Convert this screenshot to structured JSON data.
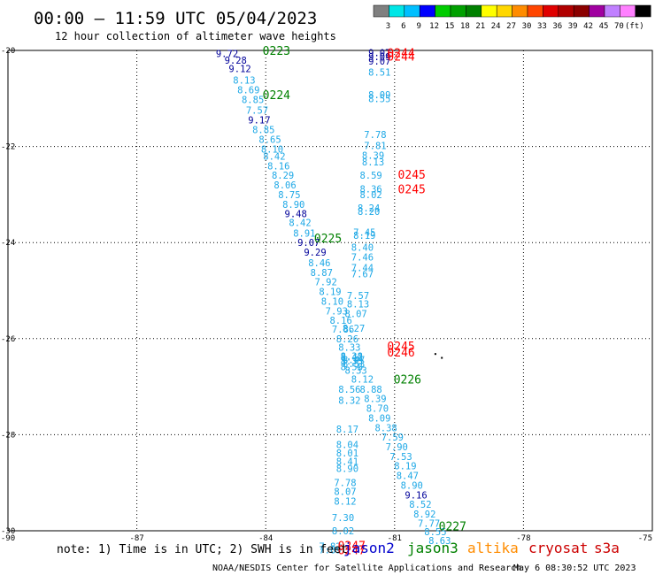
{
  "header": {
    "title": "00:00 — 11:59 UTC 05/04/2023",
    "subtitle": "12 hour collection of altimeter wave heights"
  },
  "colorbar": {
    "colors": [
      "#808080",
      "#00e6e6",
      "#00bfff",
      "#0000ff",
      "#00cc00",
      "#00a000",
      "#008000",
      "#ffff00",
      "#ffd700",
      "#ff8c00",
      "#ff4500",
      "#e00000",
      "#b00000",
      "#8b0000",
      "#a000a0",
      "#c080ff",
      "#ff80ff",
      "#000000"
    ],
    "labels": [
      "3",
      "6",
      "9",
      "12",
      "15",
      "18",
      "21",
      "24",
      "27",
      "30",
      "33",
      "36",
      "39",
      "42",
      "45",
      "70",
      "(ft)"
    ]
  },
  "footer": {
    "note": "note: 1) Time is in UTC; 2) SWH is in feet",
    "satellites": [
      {
        "name": "jason2",
        "color": "#0000cc"
      },
      {
        "name": "jason3",
        "color": "#008000"
      },
      {
        "name": "altika",
        "color": "#ff8c00"
      },
      {
        "name": "cryosat",
        "color": "#cc0000"
      },
      {
        "name": "s3a",
        "color": "#cc0000"
      }
    ],
    "credit": "NOAA/NESDIS Center for Satellite Applications and Research",
    "timestamp": "May  6 08:30:52 UTC 2023"
  },
  "chart_data": {
    "type": "scatter",
    "xlim": [
      -90,
      -75
    ],
    "ylim": [
      -30,
      -20
    ],
    "xticks": [
      -90,
      -87,
      -84,
      -81,
      -78,
      -75
    ],
    "xtick_labels": [
      "-90",
      "-87",
      "-84",
      "-81",
      "-78",
      "-75"
    ],
    "yticks": [
      -20,
      -22,
      -24,
      -26,
      -28,
      -30
    ],
    "ytick_labels": [
      "-20",
      "-22",
      "-24",
      "-26",
      "-28",
      "-30"
    ],
    "grid": true,
    "colors": {
      "light": "#1ea8e6",
      "dark": "#000099",
      "green": "#008000",
      "red": "#ff0000"
    },
    "points": [
      {
        "x": -84.9,
        "y": -20.06,
        "v": "9.72",
        "c": "dark"
      },
      {
        "x": -84.7,
        "y": -20.2,
        "v": "9.28",
        "c": "dark"
      },
      {
        "x": -84.6,
        "y": -20.38,
        "v": "9.12",
        "c": "dark"
      },
      {
        "x": -84.5,
        "y": -20.62,
        "v": "8.13",
        "c": "light"
      },
      {
        "x": -84.4,
        "y": -20.82,
        "v": "8.69",
        "c": "light"
      },
      {
        "x": -84.3,
        "y": -21.02,
        "v": "8.85",
        "c": "light"
      },
      {
        "x": -84.2,
        "y": -21.24,
        "v": "7.57",
        "c": "light"
      },
      {
        "x": -84.15,
        "y": -21.45,
        "v": "9.17",
        "c": "dark"
      },
      {
        "x": -84.05,
        "y": -21.65,
        "v": "8.85",
        "c": "light"
      },
      {
        "x": -83.9,
        "y": -21.85,
        "v": "8.65",
        "c": "light"
      },
      {
        "x": -83.85,
        "y": -22.05,
        "v": "8.10",
        "c": "light"
      },
      {
        "x": -83.8,
        "y": -22.2,
        "v": "8.42",
        "c": "light"
      },
      {
        "x": -83.7,
        "y": -22.4,
        "v": "8.16",
        "c": "light"
      },
      {
        "x": -83.6,
        "y": -22.6,
        "v": "8.29",
        "c": "light"
      },
      {
        "x": -83.55,
        "y": -22.8,
        "v": "8.06",
        "c": "light"
      },
      {
        "x": -83.45,
        "y": -23.0,
        "v": "8.75",
        "c": "light"
      },
      {
        "x": -83.35,
        "y": -23.2,
        "v": "8.90",
        "c": "light"
      },
      {
        "x": -83.3,
        "y": -23.4,
        "v": "9.48",
        "c": "dark"
      },
      {
        "x": -83.2,
        "y": -23.58,
        "v": "8.42",
        "c": "light"
      },
      {
        "x": -83.1,
        "y": -23.8,
        "v": "8.91",
        "c": "light"
      },
      {
        "x": -83.0,
        "y": -24.0,
        "v": "9.07",
        "c": "dark"
      },
      {
        "x": -82.85,
        "y": -24.2,
        "v": "9.29",
        "c": "dark"
      },
      {
        "x": -82.75,
        "y": -24.42,
        "v": "8.46",
        "c": "light"
      },
      {
        "x": -82.7,
        "y": -24.62,
        "v": "8.87",
        "c": "light"
      },
      {
        "x": -82.6,
        "y": -24.82,
        "v": "7.92",
        "c": "light"
      },
      {
        "x": -82.5,
        "y": -25.02,
        "v": "8.19",
        "c": "light"
      },
      {
        "x": -82.45,
        "y": -25.22,
        "v": "8.10",
        "c": "light"
      },
      {
        "x": -82.35,
        "y": -25.42,
        "v": "7.93",
        "c": "light"
      },
      {
        "x": -82.25,
        "y": -25.62,
        "v": "8.16",
        "c": "light"
      },
      {
        "x": -82.2,
        "y": -25.8,
        "v": "7.86",
        "c": "light"
      },
      {
        "x": -82.1,
        "y": -26.0,
        "v": "8.26",
        "c": "light"
      },
      {
        "x": -82.05,
        "y": -26.18,
        "v": "8.33",
        "c": "light"
      },
      {
        "x": -82.0,
        "y": -26.36,
        "v": "8.38",
        "c": "light"
      },
      {
        "x": -81.95,
        "y": -26.44,
        "v": "8.47",
        "c": "light"
      },
      {
        "x": -81.95,
        "y": -26.52,
        "v": "8.53",
        "c": "light"
      },
      {
        "x": -81.9,
        "y": -26.66,
        "v": "8.33",
        "c": "light"
      },
      {
        "x": -81.75,
        "y": -26.84,
        "v": "8.12",
        "c": "light"
      },
      {
        "x": -81.55,
        "y": -27.05,
        "v": "8.88",
        "c": "light"
      },
      {
        "x": -81.45,
        "y": -27.25,
        "v": "8.39",
        "c": "light"
      },
      {
        "x": -81.4,
        "y": -27.45,
        "v": "8.70",
        "c": "light"
      },
      {
        "x": -81.35,
        "y": -27.65,
        "v": "8.09",
        "c": "light"
      },
      {
        "x": -81.2,
        "y": -27.85,
        "v": "8.38",
        "c": "light"
      },
      {
        "x": -81.05,
        "y": -28.05,
        "v": "7.59",
        "c": "light"
      },
      {
        "x": -80.95,
        "y": -28.25,
        "v": "7.90",
        "c": "light"
      },
      {
        "x": -80.85,
        "y": -28.45,
        "v": "7.53",
        "c": "light"
      },
      {
        "x": -80.75,
        "y": -28.65,
        "v": "8.19",
        "c": "light"
      },
      {
        "x": -80.7,
        "y": -28.85,
        "v": "8.47",
        "c": "light"
      },
      {
        "x": -80.6,
        "y": -29.05,
        "v": "8.90",
        "c": "light"
      },
      {
        "x": -80.5,
        "y": -29.25,
        "v": "9.16",
        "c": "dark"
      },
      {
        "x": -80.4,
        "y": -29.45,
        "v": "8.52",
        "c": "light"
      },
      {
        "x": -80.3,
        "y": -29.65,
        "v": "8.92",
        "c": "light"
      },
      {
        "x": -80.2,
        "y": -29.84,
        "v": "7.77",
        "c": "light"
      },
      {
        "x": -80.05,
        "y": -30.02,
        "v": "8.55",
        "c": "light"
      },
      {
        "x": -79.95,
        "y": -30.2,
        "v": "8.63",
        "c": "light"
      },
      {
        "x": -81.35,
        "y": -20.05,
        "v": "9.07",
        "c": "dark"
      },
      {
        "x": -81.35,
        "y": -20.13,
        "v": "9.09",
        "c": "dark"
      },
      {
        "x": -81.35,
        "y": -20.22,
        "v": "9.07",
        "c": "dark"
      },
      {
        "x": -81.35,
        "y": -20.45,
        "v": "8.51",
        "c": "light"
      },
      {
        "x": -81.35,
        "y": -20.92,
        "v": "8.09",
        "c": "light"
      },
      {
        "x": -81.35,
        "y": -21.0,
        "v": "8.55",
        "c": "light"
      },
      {
        "x": -81.45,
        "y": -21.75,
        "v": "7.78",
        "c": "light"
      },
      {
        "x": -81.45,
        "y": -21.98,
        "v": "7.81",
        "c": "light"
      },
      {
        "x": -81.5,
        "y": -22.18,
        "v": "8.39",
        "c": "light"
      },
      {
        "x": -81.5,
        "y": -22.32,
        "v": "8.13",
        "c": "light"
      },
      {
        "x": -81.55,
        "y": -22.6,
        "v": "8.59",
        "c": "light"
      },
      {
        "x": -81.55,
        "y": -22.88,
        "v": "8.36",
        "c": "light"
      },
      {
        "x": -81.55,
        "y": -23.0,
        "v": "8.02",
        "c": "light"
      },
      {
        "x": -81.6,
        "y": -23.28,
        "v": "8.24",
        "c": "light"
      },
      {
        "x": -81.6,
        "y": -23.35,
        "v": "8.20",
        "c": "light"
      },
      {
        "x": -81.7,
        "y": -23.78,
        "v": "7.45",
        "c": "light"
      },
      {
        "x": -81.7,
        "y": -23.85,
        "v": "8.19",
        "c": "light"
      },
      {
        "x": -81.75,
        "y": -24.1,
        "v": "8.40",
        "c": "light"
      },
      {
        "x": -81.75,
        "y": -24.3,
        "v": "7.46",
        "c": "light"
      },
      {
        "x": -81.75,
        "y": -24.52,
        "v": "7.44",
        "c": "light"
      },
      {
        "x": -81.75,
        "y": -24.65,
        "v": "7.67",
        "c": "light"
      },
      {
        "x": -81.85,
        "y": -25.1,
        "v": "7.57",
        "c": "light"
      },
      {
        "x": -81.85,
        "y": -25.28,
        "v": "8.13",
        "c": "light"
      },
      {
        "x": -81.9,
        "y": -25.48,
        "v": "8.07",
        "c": "light"
      },
      {
        "x": -81.95,
        "y": -25.78,
        "v": "8.27",
        "c": "light"
      },
      {
        "x": -82.0,
        "y": -26.38,
        "v": "8.42",
        "c": "light"
      },
      {
        "x": -82.0,
        "y": -26.46,
        "v": "8.33",
        "c": "light"
      },
      {
        "x": -82.0,
        "y": -26.58,
        "v": "8.58",
        "c": "light"
      },
      {
        "x": -82.05,
        "y": -27.05,
        "v": "8.56",
        "c": "light"
      },
      {
        "x": -82.05,
        "y": -27.28,
        "v": "8.32",
        "c": "light"
      },
      {
        "x": -82.1,
        "y": -27.88,
        "v": "8.17",
        "c": "light"
      },
      {
        "x": -82.1,
        "y": -28.2,
        "v": "8.04",
        "c": "light"
      },
      {
        "x": -82.1,
        "y": -28.38,
        "v": "8.01",
        "c": "light"
      },
      {
        "x": -82.1,
        "y": -28.55,
        "v": "8.41",
        "c": "light"
      },
      {
        "x": -82.1,
        "y": -28.7,
        "v": "8.90",
        "c": "light"
      },
      {
        "x": -82.15,
        "y": -29.0,
        "v": "7.78",
        "c": "light"
      },
      {
        "x": -82.15,
        "y": -29.18,
        "v": "8.07",
        "c": "light"
      },
      {
        "x": -82.15,
        "y": -29.38,
        "v": "8.12",
        "c": "light"
      },
      {
        "x": -82.2,
        "y": -29.72,
        "v": "7.30",
        "c": "light"
      },
      {
        "x": -82.2,
        "y": -30.0,
        "v": "8.02",
        "c": "light"
      },
      {
        "x": -82.5,
        "y": -30.32,
        "v": "7.82",
        "c": "light"
      },
      {
        "x": -82.5,
        "y": -30.4,
        "v": "7.89",
        "c": "light"
      }
    ],
    "time_labels": [
      {
        "x": -83.75,
        "y": -20.0,
        "t": "0223",
        "c": "green"
      },
      {
        "x": -83.75,
        "y": -20.92,
        "t": "0224",
        "c": "green"
      },
      {
        "x": -82.55,
        "y": -23.9,
        "t": "0225",
        "c": "green"
      },
      {
        "x": -80.7,
        "y": -26.84,
        "t": "0226",
        "c": "green"
      },
      {
        "x": -79.65,
        "y": -29.9,
        "t": "0227",
        "c": "green"
      },
      {
        "x": -80.85,
        "y": -20.05,
        "t": "0244",
        "c": "red"
      },
      {
        "x": -80.85,
        "y": -20.12,
        "t": "0244",
        "c": "red"
      },
      {
        "x": -80.6,
        "y": -22.58,
        "t": "0245",
        "c": "red"
      },
      {
        "x": -80.6,
        "y": -22.88,
        "t": "0245",
        "c": "red"
      },
      {
        "x": -80.85,
        "y": -26.15,
        "t": "0245",
        "c": "red"
      },
      {
        "x": -80.85,
        "y": -26.28,
        "t": "0246",
        "c": "red"
      },
      {
        "x": -82.0,
        "y": -30.3,
        "t": "0247",
        "c": "red"
      },
      {
        "x": -82.0,
        "y": -30.4,
        "t": "0247",
        "c": "red"
      }
    ],
    "markers": [
      {
        "x": -80.05,
        "y": -26.32
      },
      {
        "x": -79.9,
        "y": -26.4
      }
    ]
  }
}
